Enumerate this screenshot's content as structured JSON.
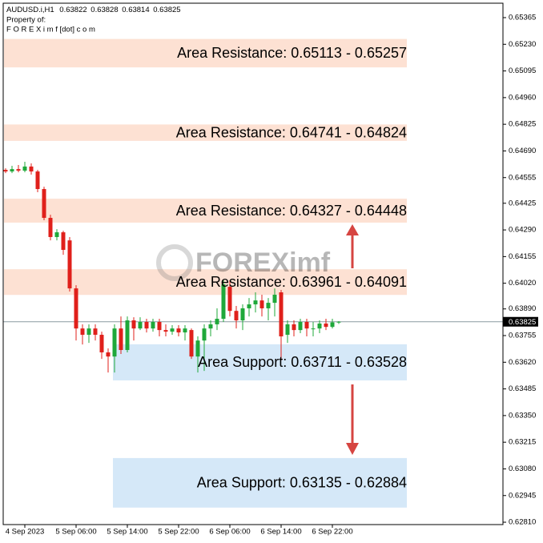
{
  "header": {
    "symbol": "AUDUSD.i,H1",
    "line2": "Property of:",
    "line3": "F O R E X i m f [dot] c o m"
  },
  "watermark": "FOREXimf",
  "chart_data": {
    "type": "candlestick",
    "x": [
      null,
      null,
      null,
      "4 Sep 2023",
      null,
      null,
      null,
      null,
      null,
      null,
      null,
      "5 Sep 06:00",
      null,
      null,
      null,
      null,
      null,
      null,
      null,
      "5 Sep 14:00",
      null,
      null,
      null,
      null,
      null,
      null,
      null,
      "5 Sep 22:00",
      null,
      null,
      null,
      null,
      null,
      null,
      null,
      "6 Sep 06:00",
      null,
      null,
      null,
      null,
      null,
      null,
      null,
      "6 Sep 14:00",
      null,
      null,
      null,
      null,
      null,
      null,
      null,
      "6 Sep 22:00",
      null
    ],
    "open": [
      0.64594,
      0.64586,
      0.64598,
      0.6459,
      0.64611,
      0.64586,
      0.64497,
      0.64351,
      0.64254,
      0.64278,
      0.64237,
      0.63994,
      0.63791,
      0.63759,
      0.63791,
      0.63759,
      0.6367,
      0.63649,
      0.63791,
      0.63682,
      0.63832,
      0.63791,
      0.63824,
      0.63791,
      0.63824,
      0.63783,
      0.63775,
      0.63791,
      0.63771,
      0.63783,
      0.63649,
      0.6373,
      0.63791,
      0.63812,
      0.6384,
      0.64002,
      0.6388,
      0.63832,
      0.63893,
      0.63913,
      0.63933,
      0.63893,
      0.63921,
      0.63974,
      0.63759,
      0.63812,
      0.63783,
      0.63824,
      0.63791,
      0.63791,
      0.63816,
      0.63799,
      0.63822
    ],
    "high": [
      0.64602,
      0.64615,
      0.64619,
      0.64635,
      0.64627,
      0.64594,
      0.64509,
      0.64367,
      0.64294,
      0.64286,
      0.64254,
      0.6401,
      0.63812,
      0.63812,
      0.63812,
      0.63775,
      0.6369,
      0.63812,
      0.63852,
      0.63852,
      0.63848,
      0.63848,
      0.6384,
      0.6384,
      0.6384,
      0.63812,
      0.63808,
      0.63808,
      0.63808,
      0.63791,
      0.63751,
      0.63812,
      0.63832,
      0.63893,
      0.64035,
      0.64035,
      0.63905,
      0.63913,
      0.63945,
      0.63974,
      0.63962,
      0.63945,
      0.63994,
      0.63986,
      0.63832,
      0.63832,
      0.6384,
      0.6384,
      0.63824,
      0.63832,
      0.6384,
      0.6384,
      0.63828
    ],
    "low": [
      0.64578,
      0.64578,
      0.64582,
      0.64582,
      0.6457,
      0.64481,
      0.64339,
      0.64237,
      0.64237,
      0.64164,
      0.63978,
      0.6373,
      0.6371,
      0.63718,
      0.6373,
      0.63637,
      0.63568,
      0.63568,
      0.63662,
      0.6367,
      0.6373,
      0.63783,
      0.63771,
      0.63775,
      0.63751,
      0.63751,
      0.63759,
      0.63751,
      0.6373,
      0.63637,
      0.63568,
      0.63576,
      0.63751,
      0.63783,
      0.63824,
      0.63852,
      0.63791,
      0.63783,
      0.63852,
      0.63872,
      0.63852,
      0.63832,
      0.63852,
      0.63629,
      0.63718,
      0.63751,
      0.63767,
      0.63751,
      0.63751,
      0.63767,
      0.63783,
      0.63791,
      0.63814
    ],
    "close": [
      0.64586,
      0.64598,
      0.6459,
      0.64611,
      0.64586,
      0.64497,
      0.64351,
      0.64254,
      0.64278,
      0.64189,
      0.63994,
      0.63791,
      0.63759,
      0.63791,
      0.63759,
      0.6367,
      0.63649,
      0.63791,
      0.63682,
      0.63832,
      0.63791,
      0.63824,
      0.63791,
      0.63824,
      0.63783,
      0.63775,
      0.63791,
      0.63771,
      0.63791,
      0.63649,
      0.6373,
      0.63791,
      0.63812,
      0.6384,
      0.64014,
      0.6388,
      0.63832,
      0.63893,
      0.63913,
      0.63933,
      0.63893,
      0.63921,
      0.63962,
      0.63751,
      0.63812,
      0.63783,
      0.63824,
      0.63791,
      0.63791,
      0.63816,
      0.63799,
      0.63822,
      0.63825
    ],
    "up_color": "#1fa83a",
    "down_color": "#e0201b",
    "ylim": [
      0.62798,
      0.65438
    ],
    "yticks": [
      0.65365,
      {
        "value": 0.6523,
        "label": "0.65230"
      },
      0.65095,
      {
        "value": 0.6496,
        "label": "0.64960"
      },
      0.64825,
      {
        "value": 0.6469,
        "label": "0.64690"
      },
      0.64555,
      0.64425,
      {
        "value": 0.6429,
        "label": "0.64290"
      },
      0.64155,
      {
        "value": 0.6402,
        "label": "0.64020"
      },
      {
        "value": 0.6389,
        "label": "0.63890"
      },
      0.63755,
      {
        "value": 0.6362,
        "label": "0.63620"
      },
      0.63485,
      {
        "value": 0.6335,
        "label": "0.63350"
      },
      0.63215,
      {
        "value": 0.6308,
        "label": "0.63080"
      },
      0.62945,
      {
        "value": 0.6281,
        "label": "0.62810"
      }
    ],
    "zones": [
      {
        "label": "Area Resistance: 0.65113 - 0.65257",
        "range": [
          0.65113,
          0.65257
        ],
        "color": "#fde1d3"
      },
      {
        "label": "Area Resistance: 0.64741 - 0.64824",
        "range": [
          0.64741,
          0.64824
        ],
        "color": "#fde1d3"
      },
      {
        "label": "Area Resistance: 0.64327 - 0.64448",
        "range": [
          0.64327,
          0.64448
        ],
        "color": "#fde1d3"
      },
      {
        "label": "Area Resistance: 0.63961 - 0.64091",
        "range": [
          0.63961,
          0.64091
        ],
        "color": "#fde1d3"
      },
      {
        "label": "Area Support: 0.63711 - 0.63528",
        "range": [
          0.63711,
          0.63528
        ],
        "color": "#d5e8f8"
      },
      {
        "label": "Area Support: 0.63135 - 0.62884",
        "range": [
          0.63135,
          0.62884
        ],
        "color": "#d5e8f8"
      }
    ]
  }
}
